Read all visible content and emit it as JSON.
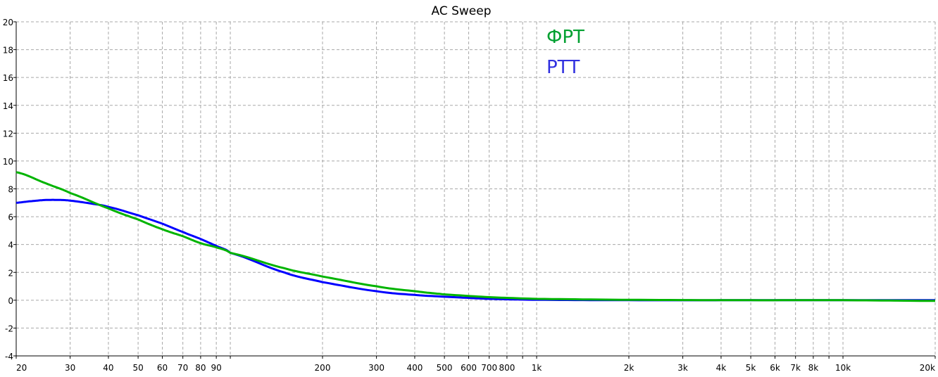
{
  "chart_data": {
    "type": "line",
    "title": "AC Sweep",
    "xlabel": "",
    "ylabel": "",
    "xscale": "log",
    "xlim": [
      20,
      20000
    ],
    "ylim": [
      -4,
      20
    ],
    "grid": true,
    "legend_position": "top-center",
    "y_ticks": [
      20,
      18,
      16,
      14,
      12,
      10,
      8,
      6,
      4,
      2,
      0,
      -2,
      -4
    ],
    "x_ticks": [
      {
        "value": 20,
        "label": "20"
      },
      {
        "value": 30,
        "label": "30"
      },
      {
        "value": 40,
        "label": "40"
      },
      {
        "value": 50,
        "label": "50"
      },
      {
        "value": 60,
        "label": "60"
      },
      {
        "value": 70,
        "label": "70"
      },
      {
        "value": 80,
        "label": "80"
      },
      {
        "value": 90,
        "label": "90"
      },
      {
        "value": 100,
        "label": ""
      },
      {
        "value": 200,
        "label": "200"
      },
      {
        "value": 300,
        "label": "300"
      },
      {
        "value": 400,
        "label": "400"
      },
      {
        "value": 500,
        "label": "500"
      },
      {
        "value": 600,
        "label": "600"
      },
      {
        "value": 700,
        "label": "700"
      },
      {
        "value": 800,
        "label": "800"
      },
      {
        "value": 900,
        "label": ""
      },
      {
        "value": 1000,
        "label": "1k"
      },
      {
        "value": 2000,
        "label": "2k"
      },
      {
        "value": 3000,
        "label": "3k"
      },
      {
        "value": 4000,
        "label": "4k"
      },
      {
        "value": 5000,
        "label": "5k"
      },
      {
        "value": 6000,
        "label": "6k"
      },
      {
        "value": 7000,
        "label": "7k"
      },
      {
        "value": 8000,
        "label": "8k"
      },
      {
        "value": 9000,
        "label": ""
      },
      {
        "value": 10000,
        "label": "10k"
      },
      {
        "value": 20000,
        "label": "20k"
      }
    ],
    "series": [
      {
        "name": "ФРТ",
        "color": "#00b400",
        "x": [
          20,
          25,
          30,
          40,
          50,
          60,
          70,
          80,
          90,
          100,
          150,
          200,
          300,
          400,
          500,
          700,
          1000,
          2000,
          5000,
          10000,
          20000
        ],
        "y": [
          9.2,
          8.4,
          7.7,
          6.6,
          5.8,
          5.1,
          4.6,
          4.1,
          3.8,
          3.4,
          2.3,
          1.7,
          1.0,
          0.65,
          0.42,
          0.22,
          0.1,
          0.03,
          0.0,
          0.0,
          -0.05
        ]
      },
      {
        "name": "РТТ",
        "color": "#0000ff",
        "x": [
          20,
          22,
          25,
          28,
          30,
          35,
          40,
          50,
          60,
          70,
          80,
          90,
          100,
          150,
          200,
          300,
          400,
          500,
          700,
          1000,
          2000,
          5000,
          10000,
          20000
        ],
        "y": [
          7.0,
          7.1,
          7.2,
          7.2,
          7.15,
          6.95,
          6.7,
          6.1,
          5.5,
          4.9,
          4.4,
          3.9,
          3.4,
          2.0,
          1.3,
          0.65,
          0.38,
          0.25,
          0.1,
          0.03,
          0.0,
          0.0,
          0.0,
          0.0
        ]
      }
    ]
  }
}
